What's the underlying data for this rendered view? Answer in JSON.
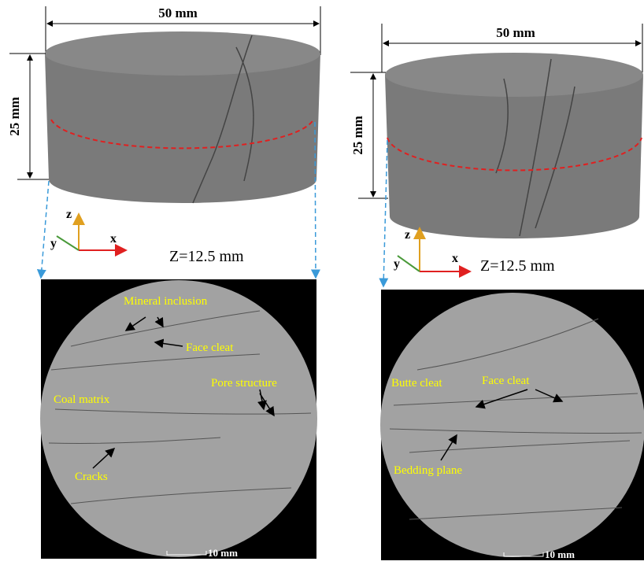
{
  "panels": [
    {
      "width_label": "50 mm",
      "height_label": "25 mm",
      "axes": {
        "z": "z",
        "y": "y",
        "x": "x"
      },
      "slice_label": "Z=12.5 mm",
      "annotations": [
        "Mineral inclusion",
        "Face cleat",
        "Coal matrix",
        "Pore structure",
        "Cracks"
      ],
      "scale_label": "10 mm"
    },
    {
      "width_label": "50 mm",
      "height_label": "25 mm",
      "axes": {
        "z": "z",
        "y": "y",
        "x": "x"
      },
      "slice_label": "Z=12.5 mm",
      "annotations": [
        "Butte cleat",
        "Face cleat",
        "Bedding plane"
      ],
      "scale_label": "10 mm"
    }
  ]
}
